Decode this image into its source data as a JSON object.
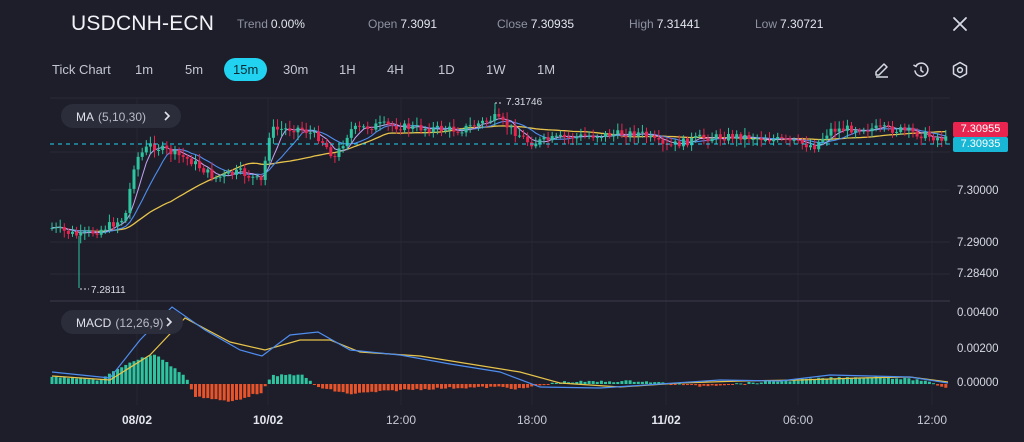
{
  "header": {
    "symbol": "USDCNH-ECN",
    "stats": [
      {
        "label": "Trend",
        "value": "0.00%"
      },
      {
        "label": "Open",
        "value": "7.3091"
      },
      {
        "label": "Close",
        "value": "7.30935"
      },
      {
        "label": "High",
        "value": "7.31441"
      },
      {
        "label": "Low",
        "value": "7.30721"
      }
    ]
  },
  "timeframes": [
    "Tick Chart",
    "1m",
    "5m",
    "15m",
    "30m",
    "1H",
    "4H",
    "1D",
    "1W",
    "1M"
  ],
  "active_timeframe": "15m",
  "tools": [
    {
      "name": "draw-pencil-icon"
    },
    {
      "name": "history-icon"
    },
    {
      "name": "settings-icon"
    }
  ],
  "ma_indicator": {
    "label": "MA",
    "params": "(5,10,30)"
  },
  "macd_indicator": {
    "label": "MACD",
    "params": "(12,26,9)"
  },
  "price_axis": [
    "7.30000",
    "7.29000",
    "7.28400"
  ],
  "macd_axis": [
    "0.00400",
    "0.00200",
    "0.00000"
  ],
  "price_tags": [
    {
      "value": "7.30955",
      "color": "#e8244f"
    },
    {
      "value": "7.30935",
      "color": "#18b7d6"
    }
  ],
  "markers": {
    "high": "7.31746",
    "low": "7.28111"
  },
  "time_axis": [
    {
      "label": "08/02",
      "bold": true
    },
    {
      "label": "10/02",
      "bold": true
    },
    {
      "label": "12:00",
      "bold": false
    },
    {
      "label": "18:00",
      "bold": false
    },
    {
      "label": "11/02",
      "bold": true
    },
    {
      "label": "06:00",
      "bold": false
    },
    {
      "label": "12:00",
      "bold": false
    }
  ],
  "colors": {
    "up": "#2ec4a0",
    "down": "#e8244f",
    "ma5": "#c5a3f5",
    "ma10": "#4f8ef0",
    "ma30": "#e7c34a",
    "macd_line": "#4f8ef0",
    "signal_line": "#e7c34a",
    "hist_up": "#2ec4a0",
    "hist_down": "#e8532a",
    "background": "#1d1e2a",
    "accent": "#21d3f0"
  }
}
